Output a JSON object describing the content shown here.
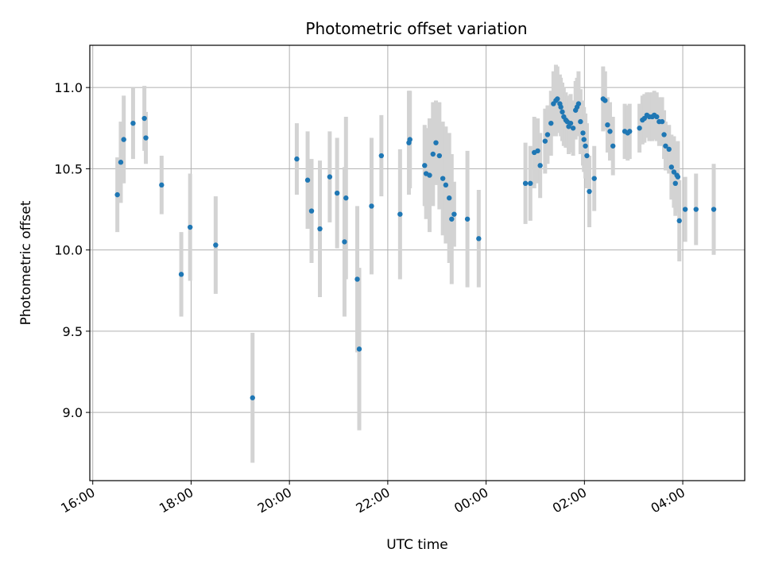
{
  "chart_data": {
    "type": "scatter",
    "title": "Photometric offset variation",
    "xlabel": "UTC time",
    "ylabel": "Photometric offset",
    "x_unit": "hours since 16:00 UTC",
    "xlim": [
      -0.06,
      13.26
    ],
    "ylim": [
      8.58,
      11.26
    ],
    "x_ticks": [
      {
        "value": 0,
        "label": "16:00"
      },
      {
        "value": 2,
        "label": "18:00"
      },
      {
        "value": 4,
        "label": "20:00"
      },
      {
        "value": 6,
        "label": "22:00"
      },
      {
        "value": 8,
        "label": "00:00"
      },
      {
        "value": 10,
        "label": "02:00"
      },
      {
        "value": 12,
        "label": "04:00"
      }
    ],
    "y_ticks": [
      {
        "value": 9.0,
        "label": "9.0"
      },
      {
        "value": 9.5,
        "label": "9.5"
      },
      {
        "value": 10.0,
        "label": "10.0"
      },
      {
        "value": 10.5,
        "label": "10.5"
      },
      {
        "value": 11.0,
        "label": "11.0"
      }
    ],
    "grid": true,
    "colors": {
      "point": "#1f77b4",
      "errorbar": "#d3d3d3",
      "grid": "#b0b0b0"
    },
    "series": [
      {
        "name": "offset",
        "x": [
          0.5,
          0.57,
          0.63,
          0.82,
          1.05,
          1.08,
          1.4,
          1.8,
          1.98,
          2.5,
          3.25,
          4.15,
          4.37,
          4.45,
          4.62,
          4.82,
          4.97,
          5.12,
          5.15,
          5.38,
          5.42,
          5.67,
          5.87,
          6.25,
          6.43,
          6.45,
          6.75,
          6.78,
          6.85,
          6.92,
          6.98,
          7.05,
          7.12,
          7.18,
          7.25,
          7.3,
          7.35,
          7.62,
          7.85,
          8.8,
          8.9,
          8.98,
          9.05,
          9.1,
          9.2,
          9.25,
          9.32,
          9.37,
          9.42,
          9.45,
          9.5,
          9.52,
          9.55,
          9.58,
          9.62,
          9.65,
          9.68,
          9.72,
          9.77,
          9.82,
          9.85,
          9.88,
          9.92,
          9.97,
          9.99,
          10.02,
          10.05,
          10.1,
          10.2,
          10.38,
          10.42,
          10.47,
          10.52,
          10.58,
          10.82,
          10.88,
          10.92,
          11.12,
          11.18,
          11.22,
          11.27,
          11.32,
          11.38,
          11.42,
          11.47,
          11.52,
          11.58,
          11.62,
          11.65,
          11.72,
          11.77,
          11.82,
          11.85,
          11.88,
          11.9,
          11.93,
          12.05,
          12.27,
          12.63
        ],
        "y": [
          10.34,
          10.54,
          10.68,
          10.78,
          10.81,
          10.69,
          10.4,
          9.85,
          10.14,
          10.03,
          9.09,
          10.56,
          10.43,
          10.24,
          10.13,
          10.45,
          10.35,
          10.05,
          10.32,
          9.82,
          9.39,
          10.27,
          10.58,
          10.22,
          10.66,
          10.68,
          10.52,
          10.47,
          10.46,
          10.59,
          10.66,
          10.58,
          10.44,
          10.4,
          10.32,
          10.19,
          10.22,
          10.19,
          10.07,
          10.41,
          10.41,
          10.6,
          10.61,
          10.52,
          10.67,
          10.71,
          10.78,
          10.9,
          10.92,
          10.93,
          10.9,
          10.88,
          10.85,
          10.82,
          10.8,
          10.79,
          10.76,
          10.78,
          10.75,
          10.86,
          10.88,
          10.9,
          10.79,
          10.72,
          10.68,
          10.64,
          10.58,
          10.36,
          10.44,
          10.93,
          10.92,
          10.77,
          10.73,
          10.64,
          10.73,
          10.72,
          10.73,
          10.75,
          10.8,
          10.81,
          10.83,
          10.82,
          10.82,
          10.83,
          10.82,
          10.79,
          10.79,
          10.71,
          10.64,
          10.62,
          10.51,
          10.48,
          10.41,
          10.46,
          10.45,
          10.18,
          10.25,
          10.25,
          10.25
        ],
        "err": [
          0.23,
          0.25,
          0.27,
          0.22,
          0.2,
          0.16,
          0.18,
          0.26,
          0.33,
          0.3,
          0.4,
          0.22,
          0.3,
          0.32,
          0.42,
          0.28,
          0.34,
          0.46,
          0.5,
          0.45,
          0.5,
          0.42,
          0.25,
          0.4,
          0.32,
          0.3,
          0.25,
          0.28,
          0.35,
          0.32,
          0.26,
          0.33,
          0.35,
          0.36,
          0.4,
          0.4,
          0.2,
          0.42,
          0.3,
          0.25,
          0.23,
          0.22,
          0.2,
          0.2,
          0.2,
          0.18,
          0.2,
          0.2,
          0.22,
          0.2,
          0.18,
          0.18,
          0.18,
          0.18,
          0.17,
          0.16,
          0.17,
          0.18,
          0.17,
          0.18,
          0.18,
          0.2,
          0.2,
          0.2,
          0.2,
          0.2,
          0.2,
          0.22,
          0.2,
          0.2,
          0.18,
          0.17,
          0.18,
          0.18,
          0.17,
          0.17,
          0.17,
          0.15,
          0.15,
          0.15,
          0.14,
          0.15,
          0.15,
          0.15,
          0.15,
          0.15,
          0.15,
          0.15,
          0.15,
          0.15,
          0.2,
          0.22,
          0.2,
          0.2,
          0.22,
          0.25,
          0.2,
          0.22,
          0.28
        ]
      }
    ]
  }
}
